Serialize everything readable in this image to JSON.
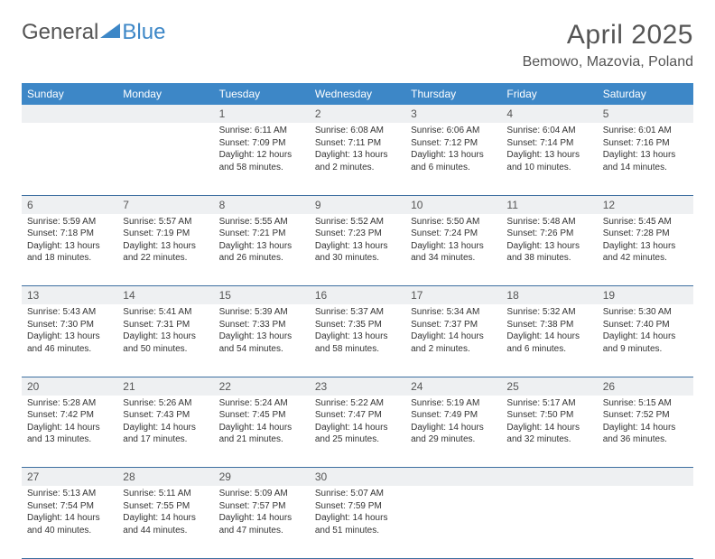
{
  "brand": {
    "part1": "General",
    "part2": "Blue"
  },
  "title": "April 2025",
  "location": "Bemowo, Mazovia, Poland",
  "colors": {
    "header_bg": "#3d87c7",
    "header_text": "#ffffff",
    "daynum_bg": "#eef0f2",
    "text": "#333333",
    "title_text": "#555555",
    "rule": "#3d6fa0"
  },
  "weekdays": [
    "Sunday",
    "Monday",
    "Tuesday",
    "Wednesday",
    "Thursday",
    "Friday",
    "Saturday"
  ],
  "weeks": [
    [
      null,
      null,
      {
        "n": "1",
        "sr": "Sunrise: 6:11 AM",
        "ss": "Sunset: 7:09 PM",
        "dl": "Daylight: 12 hours and 58 minutes."
      },
      {
        "n": "2",
        "sr": "Sunrise: 6:08 AM",
        "ss": "Sunset: 7:11 PM",
        "dl": "Daylight: 13 hours and 2 minutes."
      },
      {
        "n": "3",
        "sr": "Sunrise: 6:06 AM",
        "ss": "Sunset: 7:12 PM",
        "dl": "Daylight: 13 hours and 6 minutes."
      },
      {
        "n": "4",
        "sr": "Sunrise: 6:04 AM",
        "ss": "Sunset: 7:14 PM",
        "dl": "Daylight: 13 hours and 10 minutes."
      },
      {
        "n": "5",
        "sr": "Sunrise: 6:01 AM",
        "ss": "Sunset: 7:16 PM",
        "dl": "Daylight: 13 hours and 14 minutes."
      }
    ],
    [
      {
        "n": "6",
        "sr": "Sunrise: 5:59 AM",
        "ss": "Sunset: 7:18 PM",
        "dl": "Daylight: 13 hours and 18 minutes."
      },
      {
        "n": "7",
        "sr": "Sunrise: 5:57 AM",
        "ss": "Sunset: 7:19 PM",
        "dl": "Daylight: 13 hours and 22 minutes."
      },
      {
        "n": "8",
        "sr": "Sunrise: 5:55 AM",
        "ss": "Sunset: 7:21 PM",
        "dl": "Daylight: 13 hours and 26 minutes."
      },
      {
        "n": "9",
        "sr": "Sunrise: 5:52 AM",
        "ss": "Sunset: 7:23 PM",
        "dl": "Daylight: 13 hours and 30 minutes."
      },
      {
        "n": "10",
        "sr": "Sunrise: 5:50 AM",
        "ss": "Sunset: 7:24 PM",
        "dl": "Daylight: 13 hours and 34 minutes."
      },
      {
        "n": "11",
        "sr": "Sunrise: 5:48 AM",
        "ss": "Sunset: 7:26 PM",
        "dl": "Daylight: 13 hours and 38 minutes."
      },
      {
        "n": "12",
        "sr": "Sunrise: 5:45 AM",
        "ss": "Sunset: 7:28 PM",
        "dl": "Daylight: 13 hours and 42 minutes."
      }
    ],
    [
      {
        "n": "13",
        "sr": "Sunrise: 5:43 AM",
        "ss": "Sunset: 7:30 PM",
        "dl": "Daylight: 13 hours and 46 minutes."
      },
      {
        "n": "14",
        "sr": "Sunrise: 5:41 AM",
        "ss": "Sunset: 7:31 PM",
        "dl": "Daylight: 13 hours and 50 minutes."
      },
      {
        "n": "15",
        "sr": "Sunrise: 5:39 AM",
        "ss": "Sunset: 7:33 PM",
        "dl": "Daylight: 13 hours and 54 minutes."
      },
      {
        "n": "16",
        "sr": "Sunrise: 5:37 AM",
        "ss": "Sunset: 7:35 PM",
        "dl": "Daylight: 13 hours and 58 minutes."
      },
      {
        "n": "17",
        "sr": "Sunrise: 5:34 AM",
        "ss": "Sunset: 7:37 PM",
        "dl": "Daylight: 14 hours and 2 minutes."
      },
      {
        "n": "18",
        "sr": "Sunrise: 5:32 AM",
        "ss": "Sunset: 7:38 PM",
        "dl": "Daylight: 14 hours and 6 minutes."
      },
      {
        "n": "19",
        "sr": "Sunrise: 5:30 AM",
        "ss": "Sunset: 7:40 PM",
        "dl": "Daylight: 14 hours and 9 minutes."
      }
    ],
    [
      {
        "n": "20",
        "sr": "Sunrise: 5:28 AM",
        "ss": "Sunset: 7:42 PM",
        "dl": "Daylight: 14 hours and 13 minutes."
      },
      {
        "n": "21",
        "sr": "Sunrise: 5:26 AM",
        "ss": "Sunset: 7:43 PM",
        "dl": "Daylight: 14 hours and 17 minutes."
      },
      {
        "n": "22",
        "sr": "Sunrise: 5:24 AM",
        "ss": "Sunset: 7:45 PM",
        "dl": "Daylight: 14 hours and 21 minutes."
      },
      {
        "n": "23",
        "sr": "Sunrise: 5:22 AM",
        "ss": "Sunset: 7:47 PM",
        "dl": "Daylight: 14 hours and 25 minutes."
      },
      {
        "n": "24",
        "sr": "Sunrise: 5:19 AM",
        "ss": "Sunset: 7:49 PM",
        "dl": "Daylight: 14 hours and 29 minutes."
      },
      {
        "n": "25",
        "sr": "Sunrise: 5:17 AM",
        "ss": "Sunset: 7:50 PM",
        "dl": "Daylight: 14 hours and 32 minutes."
      },
      {
        "n": "26",
        "sr": "Sunrise: 5:15 AM",
        "ss": "Sunset: 7:52 PM",
        "dl": "Daylight: 14 hours and 36 minutes."
      }
    ],
    [
      {
        "n": "27",
        "sr": "Sunrise: 5:13 AM",
        "ss": "Sunset: 7:54 PM",
        "dl": "Daylight: 14 hours and 40 minutes."
      },
      {
        "n": "28",
        "sr": "Sunrise: 5:11 AM",
        "ss": "Sunset: 7:55 PM",
        "dl": "Daylight: 14 hours and 44 minutes."
      },
      {
        "n": "29",
        "sr": "Sunrise: 5:09 AM",
        "ss": "Sunset: 7:57 PM",
        "dl": "Daylight: 14 hours and 47 minutes."
      },
      {
        "n": "30",
        "sr": "Sunrise: 5:07 AM",
        "ss": "Sunset: 7:59 PM",
        "dl": "Daylight: 14 hours and 51 minutes."
      },
      null,
      null,
      null
    ]
  ]
}
